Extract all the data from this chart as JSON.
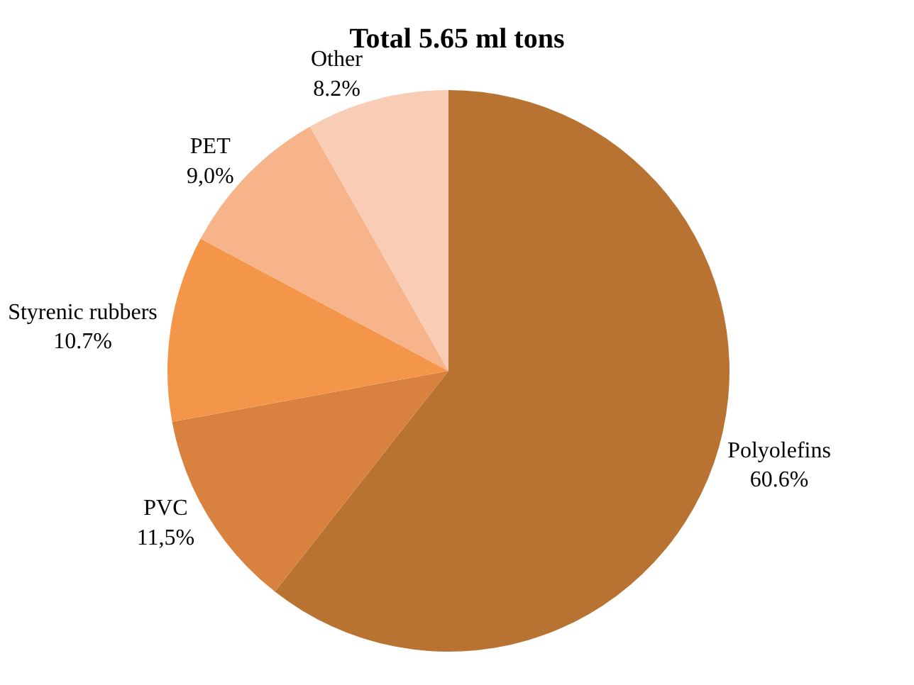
{
  "chart_data": {
    "type": "pie",
    "title": "Total 5.65 ml tons",
    "categories": [
      "Polyolefins",
      "PVC",
      "Styrenic rubbers",
      "PET",
      "Other"
    ],
    "values": [
      60.6,
      11.5,
      10.7,
      9.0,
      8.2
    ],
    "value_labels": [
      "60.6%",
      "11,5%",
      "10.7%",
      "9,0%",
      "8.2%"
    ],
    "colors": [
      "#b87333",
      "#d9813f",
      "#f4964a",
      "#f7b48a",
      "#f9cdb5"
    ],
    "legend": false
  }
}
